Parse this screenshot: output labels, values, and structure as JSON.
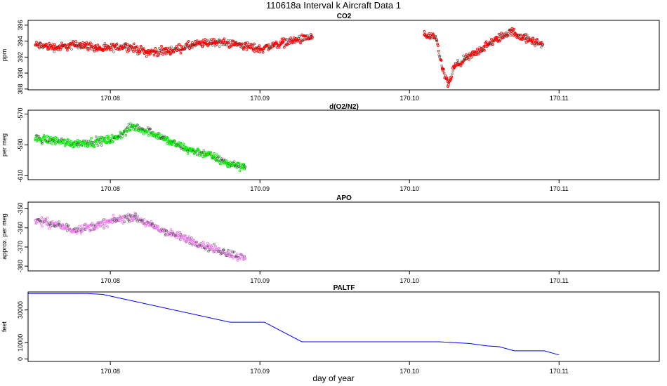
{
  "figure": {
    "title": "110618a   Interval k Aircraft Data 1",
    "xlabel": "day of year",
    "x_ticks": [
      "170.08",
      "170.09",
      "170.10",
      "170.11"
    ],
    "xlim": [
      170.0745,
      170.1167
    ]
  },
  "chart_data": [
    {
      "type": "scatter",
      "title": "CO2",
      "ylabel": "ppm",
      "y_ticks": [
        "388",
        "390",
        "392",
        "394",
        "396"
      ],
      "ylim": [
        387.9,
        396.6
      ],
      "color": "#ff0000",
      "series": [
        {
          "x": [
            170.075,
            170.0765,
            170.078,
            170.0795,
            170.081,
            170.0825,
            170.084,
            170.0855,
            170.087,
            170.0885,
            170.09,
            170.0915,
            170.0935,
            170.101,
            170.1018,
            170.1022,
            170.1026,
            170.103,
            170.1038,
            170.1048,
            170.1058,
            170.1068,
            170.1078,
            170.1089
          ],
          "y": [
            393.5,
            393.2,
            393.6,
            393.0,
            393.4,
            392.6,
            392.8,
            393.5,
            393.9,
            393.6,
            393.0,
            393.8,
            394.5,
            394.8,
            394.2,
            390.5,
            388.5,
            390.8,
            391.8,
            393.0,
            394.2,
            395.2,
            394.3,
            393.6
          ]
        }
      ]
    },
    {
      "type": "scatter",
      "title": "d(O2/N2)",
      "ylabel": "per meg",
      "y_ticks": [
        "-610",
        "-590",
        "-570"
      ],
      "ylim": [
        -612.5,
        -567.5
      ],
      "color": "#00ee00",
      "series": [
        {
          "x": [
            170.075,
            170.0762,
            170.0775,
            170.079,
            170.0803,
            170.0815,
            170.0828,
            170.084,
            170.0852,
            170.0865,
            170.0878,
            170.089
          ],
          "y": [
            -586,
            -587,
            -589,
            -588,
            -586,
            -578,
            -582,
            -588,
            -593,
            -596,
            -602,
            -604
          ]
        }
      ]
    },
    {
      "type": "scatter",
      "title": "APO",
      "ylabel": "approx. per meg",
      "y_ticks": [
        "-380",
        "-370",
        "-360",
        "-350"
      ],
      "ylim": [
        -382.5,
        -346.5
      ],
      "color": "#ee82ee",
      "series": [
        {
          "x": [
            170.075,
            170.0762,
            170.0775,
            170.079,
            170.0803,
            170.0815,
            170.0828,
            170.084,
            170.0852,
            170.0865,
            170.0878,
            170.089
          ],
          "y": [
            -356,
            -358,
            -361,
            -359,
            -356,
            -354,
            -359,
            -363,
            -366,
            -370,
            -373,
            -376
          ]
        }
      ]
    },
    {
      "type": "line",
      "title": "PALTF",
      "ylabel": "feet",
      "y_ticks": [
        "0",
        "10000",
        "30000"
      ],
      "ylim": [
        -1500,
        41000
      ],
      "color": "#0000ff",
      "series": [
        {
          "x": [
            170.0745,
            170.0785,
            170.0795,
            170.088,
            170.0898,
            170.0903,
            170.0928,
            170.102,
            170.103,
            170.104,
            170.1052,
            170.106,
            170.107,
            170.109,
            170.11
          ],
          "y": [
            40000,
            40000,
            39500,
            22500,
            22500,
            22500,
            10500,
            10500,
            10000,
            9500,
            8000,
            7500,
            5000,
            5000,
            2500
          ]
        }
      ]
    }
  ]
}
